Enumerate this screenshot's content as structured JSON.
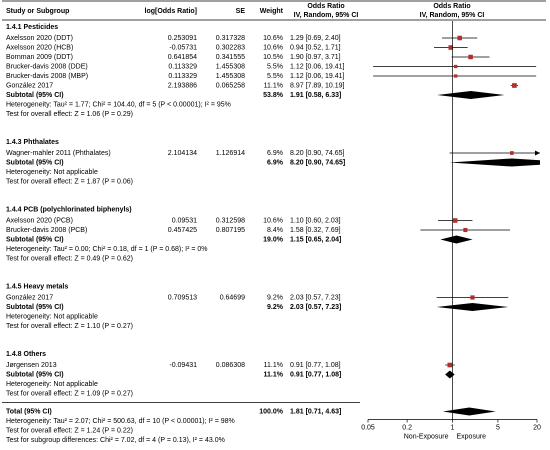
{
  "chart_data": {
    "type": "forest",
    "columns": {
      "study": "Study or Subgroup",
      "log_or": "log[Odds Ratio]",
      "se": "SE",
      "weight": "Weight",
      "or_text": [
        "Odds Ratio",
        "IV, Random, 95% CI"
      ],
      "or_plot": [
        "Odds Ratio",
        "IV, Random, 95% CI"
      ]
    },
    "groups": [
      {
        "title": "1.4.1 Pesticides",
        "studies": [
          {
            "name": "Axelsson 2020 (DDT)",
            "log_or": 0.253091,
            "se": 0.317328,
            "weight": 10.6,
            "weight_label": "10.6%",
            "or": 1.29,
            "ci": [
              0.69,
              2.4
            ],
            "ci_label": "1.29 [0.69, 2.40]"
          },
          {
            "name": "Axelsson 2020 (HCB)",
            "log_or": -0.05731,
            "se": 0.302283,
            "weight": 10.6,
            "weight_label": "10.6%",
            "or": 0.94,
            "ci": [
              0.52,
              1.71
            ],
            "ci_label": "0.94 [0.52, 1.71]"
          },
          {
            "name": "Bornman 2009 (DDT)",
            "log_or": 0.641854,
            "se": 0.341555,
            "weight": 10.5,
            "weight_label": "10.5%",
            "or": 1.9,
            "ci": [
              0.97,
              3.71
            ],
            "ci_label": "1.90 [0.97, 3.71]"
          },
          {
            "name": "Brucker-davis 2008 (DDE)",
            "log_or": 0.113329,
            "se": 1.455308,
            "weight": 5.5,
            "weight_label": "5.5%",
            "or": 1.12,
            "ci": [
              0.06,
              19.41
            ],
            "ci_label": "1.12 [0.06, 19.41]"
          },
          {
            "name": "Brucker-davis 2008 (MBP)",
            "log_or": 0.113329,
            "se": 1.455308,
            "weight": 5.5,
            "weight_label": "5.5%",
            "or": 1.12,
            "ci": [
              0.06,
              19.41
            ],
            "ci_label": "1.12 [0.06, 19.41]"
          },
          {
            "name": "González 2017",
            "log_or": 2.193886,
            "se": 0.065258,
            "weight": 11.1,
            "weight_label": "11.1%",
            "or": 8.97,
            "ci": [
              7.89,
              10.19
            ],
            "ci_label": "8.97 [7.89, 10.19]"
          }
        ],
        "subtotal": {
          "name": "Subtotal (95% CI)",
          "weight": 53.8,
          "weight_label": "53.8%",
          "or": 1.91,
          "ci": [
            0.58,
            6.33
          ],
          "ci_label": "1.91 [0.58, 6.33]"
        },
        "heterogeneity": "Heterogeneity: Tau² = 1.77; Chi² = 104.40, df = 5 (P < 0.00001); I² = 95%",
        "overall_effect": "Test for overall effect: Z = 1.06 (P = 0.29)"
      },
      {
        "title": "1.4.3 Phthalates",
        "studies": [
          {
            "name": "Wagner-mahler 2011 (Phthalates)",
            "log_or": 2.104134,
            "se": 1.126914,
            "weight": 6.9,
            "weight_label": "6.9%",
            "or": 8.2,
            "ci": [
              0.9,
              74.65
            ],
            "ci_label": "8.20 [0.90, 74.65]"
          }
        ],
        "subtotal": {
          "name": "Subtotal (95% CI)",
          "weight": 6.9,
          "weight_label": "6.9%",
          "or": 8.2,
          "ci": [
            0.9,
            74.65
          ],
          "ci_label": "8.20 [0.90, 74.65]"
        },
        "heterogeneity": "Heterogeneity: Not applicable",
        "overall_effect": "Test for overall effect: Z = 1.87 (P = 0.06)"
      },
      {
        "title": "1.4.4 PCB (polychlorinated biphenyls)",
        "studies": [
          {
            "name": "Axelsson 2020 (PCB)",
            "log_or": 0.09531,
            "se": 0.312598,
            "weight": 10.6,
            "weight_label": "10.6%",
            "or": 1.1,
            "ci": [
              0.6,
              2.03
            ],
            "ci_label": "1.10 [0.60, 2.03]"
          },
          {
            "name": "Brucker-davis 2008 (PCB)",
            "log_or": 0.457425,
            "se": 0.807195,
            "weight": 8.4,
            "weight_label": "8.4%",
            "or": 1.58,
            "ci": [
              0.32,
              7.69
            ],
            "ci_label": "1.58 [0.32, 7.69]"
          }
        ],
        "subtotal": {
          "name": "Subtotal (95% CI)",
          "weight": 19.0,
          "weight_label": "19.0%",
          "or": 1.15,
          "ci": [
            0.65,
            2.04
          ],
          "ci_label": "1.15 [0.65, 2.04]"
        },
        "heterogeneity": "Heterogeneity: Tau² = 0.00; Chi² = 0.18, df = 1 (P = 0.68); I² = 0%",
        "overall_effect": "Test for overall effect: Z = 0.49 (P = 0.62)"
      },
      {
        "title": "1.4.5 Heavy metals",
        "studies": [
          {
            "name": "González 2017",
            "log_or": 0.709513,
            "se": 0.64699,
            "weight": 9.2,
            "weight_label": "9.2%",
            "or": 2.03,
            "ci": [
              0.57,
              7.23
            ],
            "ci_label": "2.03 [0.57, 7.23]"
          }
        ],
        "subtotal": {
          "name": "Subtotal (95% CI)",
          "weight": 9.2,
          "weight_label": "9.2%",
          "or": 2.03,
          "ci": [
            0.57,
            7.23
          ],
          "ci_label": "2.03 [0.57, 7.23]"
        },
        "heterogeneity": "Heterogeneity: Not applicable",
        "overall_effect": "Test for overall effect: Z = 1.10 (P = 0.27)"
      },
      {
        "title": "1.4.8 Others",
        "studies": [
          {
            "name": "Jørgensen 2013",
            "log_or": -0.09431,
            "se": 0.086308,
            "weight": 11.1,
            "weight_label": "11.1%",
            "or": 0.91,
            "ci": [
              0.77,
              1.08
            ],
            "ci_label": "0.91 [0.77, 1.08]"
          }
        ],
        "subtotal": {
          "name": "Subtotal (95% CI)",
          "weight": 11.1,
          "weight_label": "11.1%",
          "or": 0.91,
          "ci": [
            0.77,
            1.08
          ],
          "ci_label": "0.91 [0.77, 1.08]"
        },
        "heterogeneity": "Heterogeneity: Not applicable",
        "overall_effect": "Test for overall effect: Z = 1.09 (P = 0.27)"
      }
    ],
    "total": {
      "name": "Total (95% CI)",
      "weight": 100.0,
      "weight_label": "100.0%",
      "or": 1.81,
      "ci": [
        0.71,
        4.63
      ],
      "ci_label": "1.81 [0.71, 4.63]",
      "heterogeneity": "Heterogeneity: Tau² = 2.07; Chi² = 500.63, df = 10 (P < 0.00001); I² = 98%",
      "overall_effect": "Test for overall effect: Z = 1.24 (P = 0.22)",
      "subgroup_differences": "Test for subgroup differences: Chi² = 7.02, df = 4 (P = 0.13), I² = 43.0%"
    },
    "xlim": [
      0.05,
      20
    ],
    "xticks": [
      0.05,
      0.2,
      1,
      5,
      20
    ],
    "log_x": true,
    "x_labels": [
      "Non-Exposure",
      "Exposure"
    ],
    "box_color": "#b03030",
    "diamond_color": "#000000"
  }
}
